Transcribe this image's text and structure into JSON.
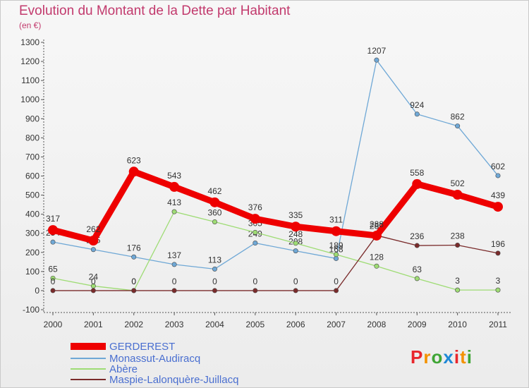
{
  "title": "Evolution du Montant de la Dette par Habitant",
  "unit": "(en €)",
  "logo": {
    "text": "Proxiti",
    "colors": [
      "#e8262c",
      "#f39200",
      "#3fa535",
      "#1e88d6",
      "#e8262c",
      "#f39200",
      "#3fa535"
    ]
  },
  "chart_data": {
    "type": "line",
    "title": "Evolution du Montant de la Dette par Habitant",
    "subtitle": "(en €)",
    "xlabel": "",
    "ylabel": "",
    "x": [
      "2000",
      "2001",
      "2002",
      "2003",
      "2004",
      "2005",
      "2006",
      "2007",
      "2008",
      "2009",
      "2010",
      "2011"
    ],
    "ylim": [
      -100,
      1300
    ],
    "yticks": [
      -100,
      0,
      100,
      200,
      300,
      400,
      500,
      600,
      700,
      800,
      900,
      1000,
      1100,
      1200,
      1300
    ],
    "grid": false,
    "legend": "bottom-left",
    "series": [
      {
        "name": "GERDEREST",
        "color": "#ee0000",
        "values": [
          317,
          262,
          623,
          543,
          462,
          376,
          335,
          311,
          288,
          558,
          502,
          439
        ]
      },
      {
        "name": "Monassut-Audiracq",
        "color": "#6fa8d6",
        "values": [
          254,
          215,
          176,
          137,
          113,
          249,
          208,
          168,
          1207,
          924,
          862,
          602
        ]
      },
      {
        "name": "Abère",
        "color": "#9edc74",
        "values": [
          65,
          24,
          0,
          413,
          360,
          305,
          248,
          189,
          128,
          63,
          3,
          3
        ]
      },
      {
        "name": "Maspie-Lalonquère-Juillacq",
        "color": "#7a2b2b",
        "values": [
          0,
          0,
          0,
          0,
          0,
          0,
          0,
          0,
          289,
          236,
          238,
          196
        ]
      }
    ]
  }
}
